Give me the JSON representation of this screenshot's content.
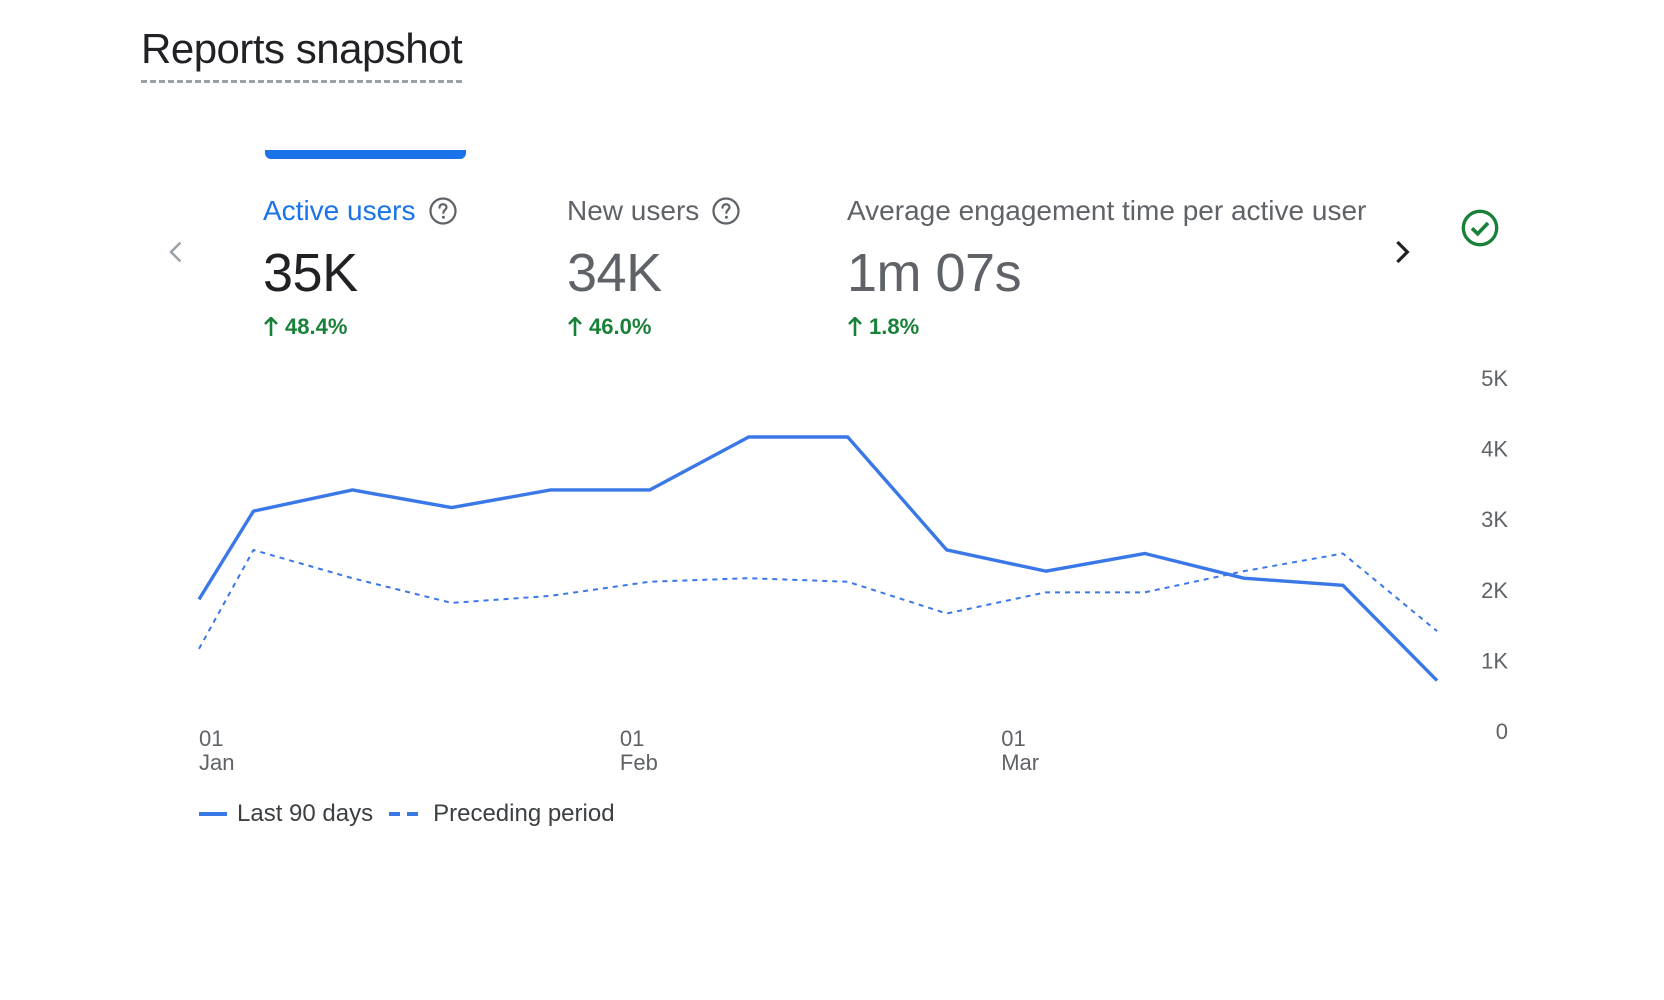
{
  "header": {
    "title": "Reports snapshot"
  },
  "metrics": [
    {
      "label": "Active users",
      "value": "35K",
      "delta": "48.4%",
      "selected": true
    },
    {
      "label": "New users",
      "value": "34K",
      "delta": "46.0%"
    },
    {
      "label": "Average engagement time per active user",
      "value": "1m 07s",
      "delta": "1.8%"
    }
  ],
  "icons": {
    "prev": "chevron-left-icon",
    "next": "chevron-right-icon",
    "status": "check-circle-icon",
    "help": "help-circle-icon",
    "delta": "arrow-up-icon"
  },
  "colors": {
    "accent": "#1a73e8",
    "positive": "#188038",
    "series": "#3b78e7"
  },
  "legend": {
    "current": "Last 90 days",
    "previous": "Preceding period"
  },
  "chart_data": {
    "type": "line",
    "title": "",
    "xlabel": "",
    "ylabel": "",
    "ylim": [
      0,
      5000
    ],
    "y_ticks": [
      "0",
      "1K",
      "2K",
      "3K",
      "4K",
      "5K"
    ],
    "y_tick_values": [
      0,
      1000,
      2000,
      3000,
      4000,
      5000
    ],
    "y_axis_side": "right",
    "x_index_range": [
      0,
      12.5
    ],
    "x_ticks": [
      {
        "day": "01",
        "month": "Jan",
        "index": 0
      },
      {
        "day": "01",
        "month": "Feb",
        "index": 4.25
      },
      {
        "day": "01",
        "month": "Mar",
        "index": 8.1
      }
    ],
    "series": [
      {
        "name": "Last 90 days",
        "style": "solid",
        "x": [
          0,
          0.55,
          1.55,
          2.55,
          3.55,
          4.55,
          5.55,
          6.55,
          7.55,
          8.55,
          9.55,
          10.55,
          11.55,
          12.5
        ],
        "values": [
          1850,
          3100,
          3400,
          3150,
          3400,
          3400,
          4150,
          4150,
          2550,
          2250,
          2500,
          2150,
          2050,
          700
        ]
      },
      {
        "name": "Preceding period",
        "style": "dashed",
        "x": [
          0,
          0.55,
          1.55,
          2.55,
          3.55,
          4.55,
          5.55,
          6.55,
          7.55,
          8.55,
          9.55,
          10.55,
          11.55,
          12.5
        ],
        "values": [
          1150,
          2550,
          2150,
          1800,
          1900,
          2100,
          2150,
          2100,
          1650,
          1950,
          1950,
          2250,
          2500,
          1400
        ]
      }
    ]
  }
}
